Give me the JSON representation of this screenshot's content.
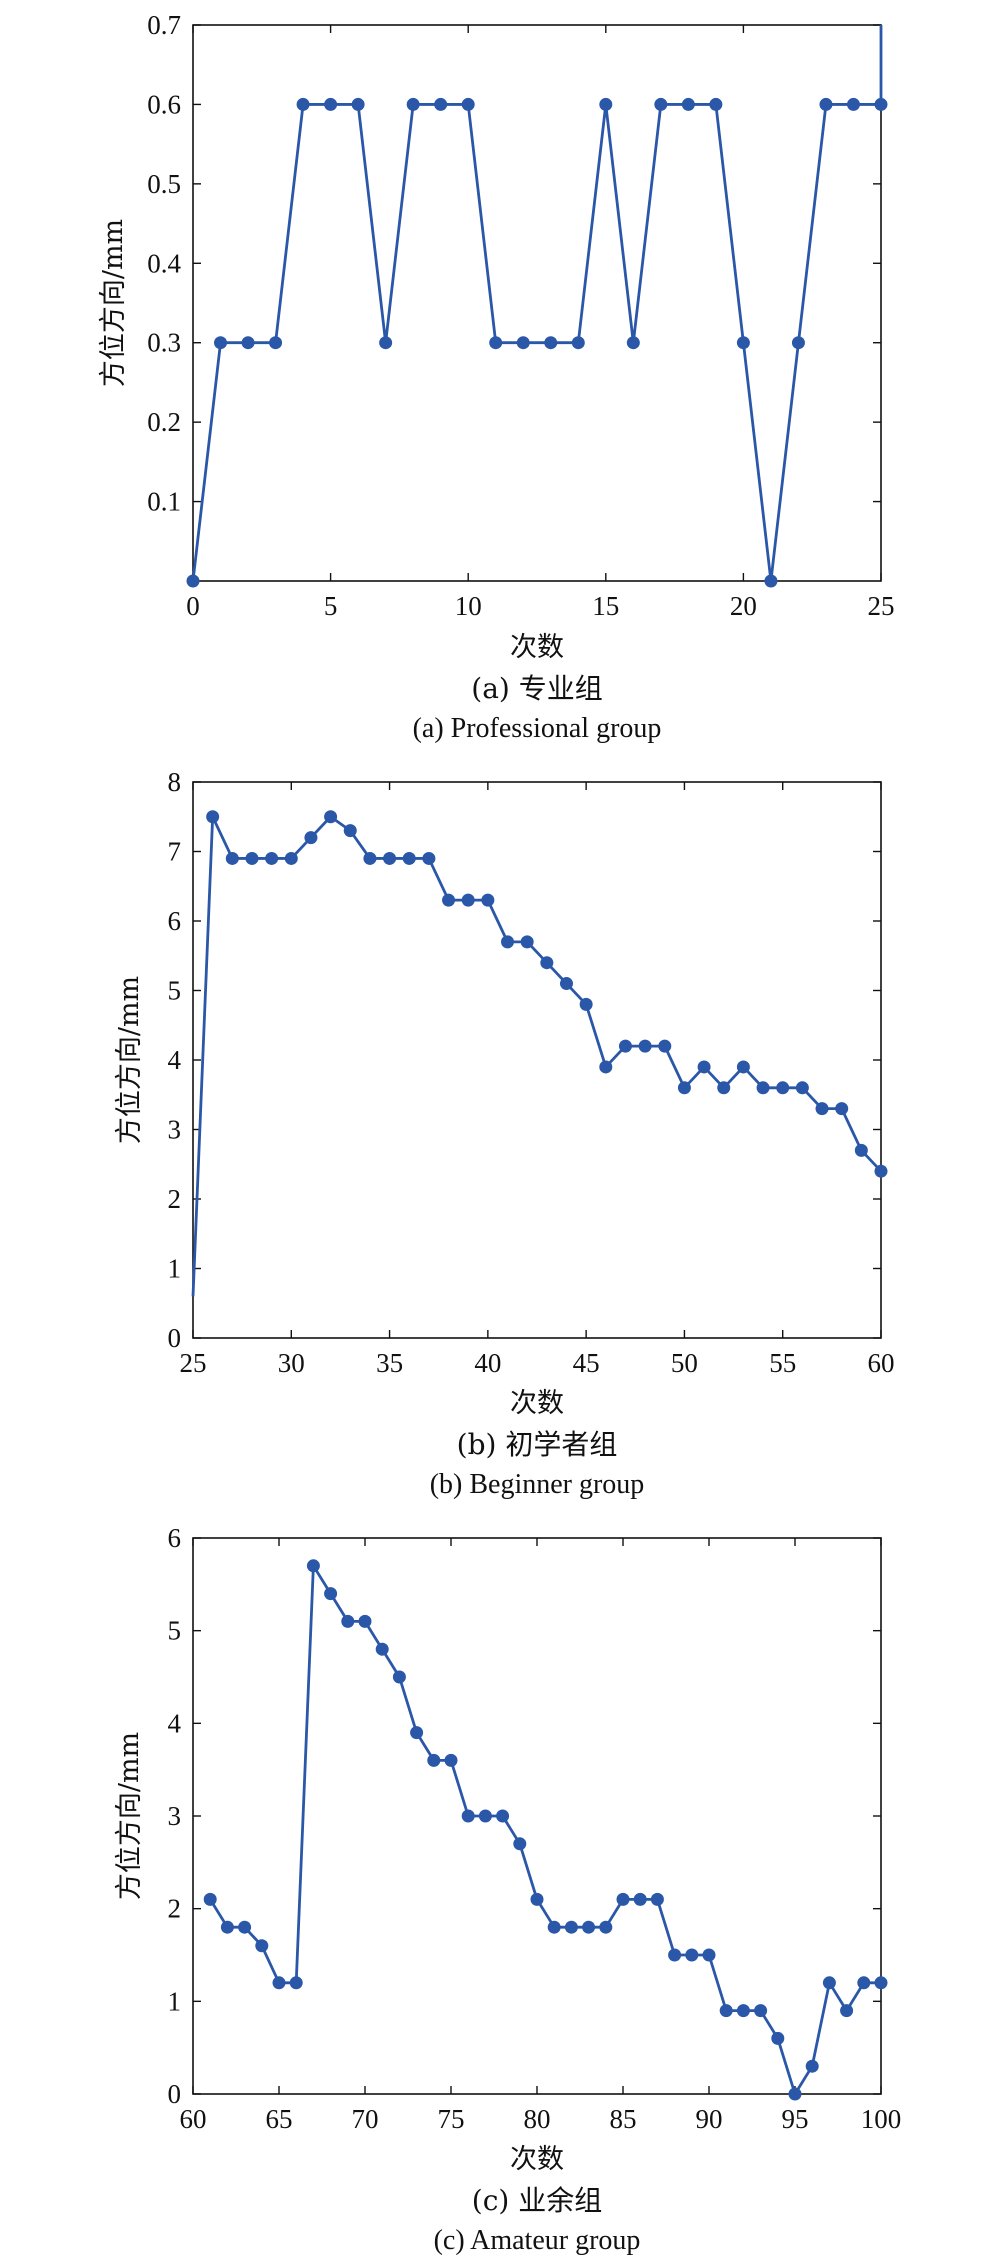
{
  "accent_color": "#2a57a8",
  "chart_data": [
    {
      "type": "line",
      "xlabel": "次数",
      "ylabel": "方位方向/mm",
      "xlim": [
        0,
        25
      ],
      "ylim": [
        0,
        0.7
      ],
      "xticks": [
        0,
        5,
        10,
        15,
        20,
        25
      ],
      "yticks": [
        0.1,
        0.2,
        0.3,
        0.4,
        0.5,
        0.6,
        0.7
      ],
      "caption_cn": "(a) 专业组",
      "caption_en": "(a) Professional group",
      "x": [
        0,
        1,
        2,
        3,
        4,
        5,
        6,
        7,
        8,
        9,
        10,
        11,
        12,
        13,
        14,
        15,
        16,
        17,
        18,
        19,
        20,
        21,
        22,
        23,
        24,
        25
      ],
      "values": [
        0,
        0.3,
        0.3,
        0.3,
        0.6,
        0.6,
        0.6,
        0.3,
        0.6,
        0.6,
        0.6,
        0.3,
        0.3,
        0.3,
        0.3,
        0.6,
        0.3,
        0.6,
        0.6,
        0.6,
        0.3,
        0,
        0.3,
        0.6,
        0.6,
        0.6
      ],
      "tail": [
        [
          25,
          0.6
        ],
        [
          25,
          0.7
        ]
      ],
      "marker_from": 0
    },
    {
      "type": "line",
      "xlabel": "次数",
      "ylabel": "方位方向/mm",
      "xlim": [
        25,
        60
      ],
      "ylim": [
        0,
        8
      ],
      "xticks": [
        25,
        30,
        35,
        40,
        45,
        50,
        55,
        60
      ],
      "yticks": [
        0,
        1,
        2,
        3,
        4,
        5,
        6,
        7,
        8
      ],
      "caption_cn": "(b) 初学者组",
      "caption_en": "(b) Beginner group",
      "x": [
        25,
        26,
        27,
        28,
        29,
        30,
        31,
        32,
        33,
        34,
        35,
        36,
        37,
        38,
        39,
        40,
        41,
        42,
        43,
        44,
        45,
        46,
        47,
        48,
        49,
        50,
        51,
        52,
        53,
        54,
        55,
        56,
        57,
        58,
        59,
        60
      ],
      "values": [
        0.6,
        7.5,
        6.9,
        6.9,
        6.9,
        6.9,
        7.2,
        7.5,
        7.3,
        6.9,
        6.9,
        6.9,
        6.9,
        6.3,
        6.3,
        6.3,
        5.7,
        5.7,
        5.4,
        5.1,
        4.8,
        3.9,
        4.2,
        4.2,
        4.2,
        3.6,
        3.9,
        3.6,
        3.9,
        3.6,
        3.6,
        3.6,
        3.3,
        3.3,
        2.7,
        2.4
      ],
      "marker_from": 1
    },
    {
      "type": "line",
      "xlabel": "次数",
      "ylabel": "方位方向/mm",
      "xlim": [
        60,
        100
      ],
      "ylim": [
        0,
        6
      ],
      "xticks": [
        60,
        65,
        70,
        75,
        80,
        85,
        90,
        95,
        100
      ],
      "yticks": [
        0,
        1,
        2,
        3,
        4,
        5,
        6
      ],
      "caption_cn": "(c) 业余组",
      "caption_en": "(c) Amateur group",
      "x": [
        61,
        62,
        63,
        64,
        65,
        66,
        67,
        68,
        69,
        70,
        71,
        72,
        73,
        74,
        75,
        76,
        77,
        78,
        79,
        80,
        81,
        82,
        83,
        84,
        85,
        86,
        87,
        88,
        89,
        90,
        91,
        92,
        93,
        94,
        95,
        96,
        97,
        98,
        99,
        100
      ],
      "values": [
        2.1,
        1.8,
        1.8,
        1.6,
        1.2,
        1.2,
        5.7,
        5.4,
        5.1,
        5.1,
        4.8,
        4.5,
        3.9,
        3.6,
        3.6,
        3.0,
        3.0,
        3.0,
        2.7,
        2.1,
        1.8,
        1.8,
        1.8,
        1.8,
        2.1,
        2.1,
        2.1,
        1.5,
        1.5,
        1.5,
        0.9,
        0.9,
        0.9,
        0.6,
        0.0,
        0.3,
        1.2,
        0.9,
        1.2,
        1.2
      ],
      "marker_from": 0
    }
  ]
}
